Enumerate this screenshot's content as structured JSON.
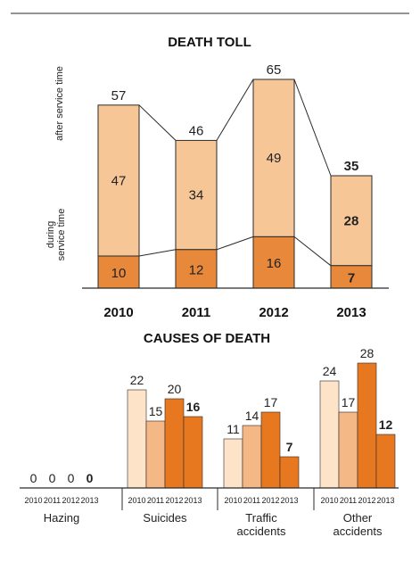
{
  "colors": {
    "after_service": "#f7c697",
    "during_service": "#e8883a",
    "stroke": "#2a2a2a",
    "yr2010": "#fde3c8",
    "yr2011": "#f4b786",
    "yr2012": "#e8781f",
    "yr2013": "#e8781f"
  },
  "chart_data": [
    {
      "type": "bar",
      "title": "DEATH TOLL",
      "stacked": true,
      "categories": [
        "2010",
        "2011",
        "2012",
        "2013"
      ],
      "totals": [
        "57",
        "46",
        "65",
        "35"
      ],
      "series": [
        {
          "name": "during service time",
          "values": [
            10,
            12,
            16,
            7
          ]
        },
        {
          "name": "after service time",
          "values": [
            47,
            34,
            49,
            28
          ]
        }
      ],
      "ylim": [
        0,
        65
      ],
      "emphasized_category": "2013",
      "grid": false
    },
    {
      "type": "bar",
      "title": "CAUSES OF DEATH",
      "categories": [
        "Hazing",
        "Suicides",
        "Traffic accidents",
        "Other accidents"
      ],
      "group_labels": [
        [
          "Hazing"
        ],
        [
          "Suicides"
        ],
        [
          "Traffic",
          "accidents"
        ],
        [
          "Other",
          "accidents"
        ]
      ],
      "years": [
        "2010",
        "2011",
        "2012",
        "2013"
      ],
      "series": [
        {
          "name": "2010",
          "values": [
            0,
            22,
            11,
            24
          ]
        },
        {
          "name": "2011",
          "values": [
            0,
            15,
            14,
            17
          ]
        },
        {
          "name": "2012",
          "values": [
            0,
            20,
            17,
            28
          ]
        },
        {
          "name": "2013",
          "values": [
            0,
            16,
            7,
            12
          ]
        }
      ],
      "ylim": [
        0,
        28
      ],
      "emphasized_series": "2013",
      "grid": false
    }
  ]
}
